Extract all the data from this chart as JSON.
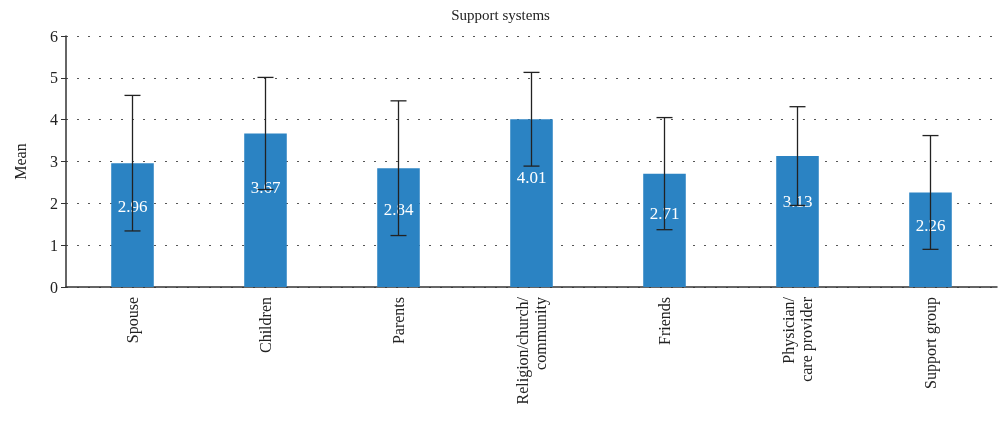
{
  "chart_data": {
    "type": "bar",
    "title": "Support systems",
    "ylabel": "Mean",
    "categories": [
      "Spouse",
      "Children",
      "Parents",
      "Religion/church/community",
      "Friends",
      "Physician/care provider",
      "Support group"
    ],
    "values": [
      2.96,
      3.67,
      2.84,
      4.01,
      2.71,
      3.13,
      2.26
    ],
    "errors": [
      1.62,
      1.34,
      1.61,
      1.12,
      1.34,
      1.18,
      1.36
    ],
    "color": "#2b83c3",
    "ylim": [
      0,
      6
    ],
    "yticks": [
      0,
      1,
      2,
      3,
      4,
      5,
      6
    ],
    "grid": "y",
    "data_labels": true
  }
}
